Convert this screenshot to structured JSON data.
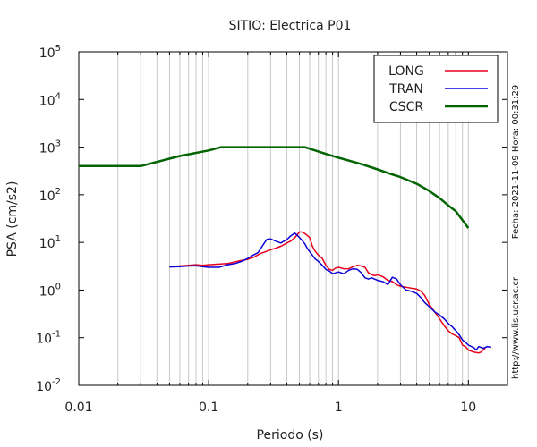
{
  "chart_data": {
    "type": "line",
    "title": "SITIO: Electrica P01",
    "xlabel": "Periodo (s)",
    "ylabel": "PSA (cm/s2)",
    "xscale": "log",
    "yscale": "log",
    "xlim": [
      0.01,
      20
    ],
    "ylim": [
      0.01,
      100000
    ],
    "grid_x": true,
    "grid_y": false,
    "legend_position": "top-right",
    "x_ticks": [
      {
        "value": 0.01,
        "label": "0.01"
      },
      {
        "value": 0.1,
        "label": "0.1"
      },
      {
        "value": 1,
        "label": "1"
      },
      {
        "value": 10,
        "label": "10"
      }
    ],
    "y_ticks": [
      {
        "value": 0.01,
        "base": "10",
        "exp": "-2"
      },
      {
        "value": 0.1,
        "base": "10",
        "exp": "-1"
      },
      {
        "value": 1,
        "base": "10",
        "exp": "0"
      },
      {
        "value": 10,
        "base": "10",
        "exp": "1"
      },
      {
        "value": 100,
        "base": "10",
        "exp": "2"
      },
      {
        "value": 1000,
        "base": "10",
        "exp": "3"
      },
      {
        "value": 10000,
        "base": "10",
        "exp": "4"
      },
      {
        "value": 100000,
        "base": "10",
        "exp": "5"
      }
    ],
    "series": [
      {
        "name": "LONG",
        "color": "#e8001c",
        "width": 1.5,
        "points": [
          [
            0.05,
            3.1
          ],
          [
            0.06,
            3.2
          ],
          [
            0.07,
            3.3
          ],
          [
            0.08,
            3.4
          ],
          [
            0.09,
            3.3
          ],
          [
            0.1,
            3.4
          ],
          [
            0.12,
            3.5
          ],
          [
            0.14,
            3.6
          ],
          [
            0.16,
            3.9
          ],
          [
            0.18,
            4.2
          ],
          [
            0.2,
            4.4
          ],
          [
            0.22,
            4.8
          ],
          [
            0.25,
            5.8
          ],
          [
            0.28,
            6.5
          ],
          [
            0.3,
            7.0
          ],
          [
            0.33,
            7.6
          ],
          [
            0.36,
            8.3
          ],
          [
            0.4,
            9.7
          ],
          [
            0.43,
            10.7
          ],
          [
            0.46,
            12.5
          ],
          [
            0.5,
            16.6
          ],
          [
            0.53,
            16.5
          ],
          [
            0.57,
            14.3
          ],
          [
            0.6,
            12.6
          ],
          [
            0.63,
            8.3
          ],
          [
            0.66,
            6.6
          ],
          [
            0.7,
            5.4
          ],
          [
            0.75,
            4.6
          ],
          [
            0.8,
            3.3
          ],
          [
            0.85,
            2.7
          ],
          [
            0.9,
            2.6
          ],
          [
            0.95,
            2.9
          ],
          [
            1.0,
            3.0
          ],
          [
            1.1,
            2.8
          ],
          [
            1.2,
            2.8
          ],
          [
            1.3,
            3.1
          ],
          [
            1.4,
            3.3
          ],
          [
            1.5,
            3.2
          ],
          [
            1.6,
            3.0
          ],
          [
            1.7,
            2.3
          ],
          [
            1.8,
            2.1
          ],
          [
            1.9,
            2.0
          ],
          [
            2.0,
            2.1
          ],
          [
            2.2,
            1.9
          ],
          [
            2.4,
            1.6
          ],
          [
            2.6,
            1.5
          ],
          [
            2.8,
            1.3
          ],
          [
            3.0,
            1.2
          ],
          [
            3.3,
            1.15
          ],
          [
            3.6,
            1.1
          ],
          [
            4.0,
            1.05
          ],
          [
            4.3,
            0.95
          ],
          [
            4.6,
            0.78
          ],
          [
            5.0,
            0.5
          ],
          [
            5.5,
            0.35
          ],
          [
            6.0,
            0.25
          ],
          [
            6.5,
            0.18
          ],
          [
            7.0,
            0.14
          ],
          [
            7.5,
            0.12
          ],
          [
            8.0,
            0.11
          ],
          [
            8.5,
            0.1
          ],
          [
            9.0,
            0.07
          ],
          [
            9.5,
            0.065
          ],
          [
            10,
            0.055
          ],
          [
            11,
            0.05
          ],
          [
            12,
            0.048
          ],
          [
            12.5,
            0.05
          ],
          [
            13,
            0.055
          ],
          [
            13.5,
            0.06
          ]
        ]
      },
      {
        "name": "TRAN",
        "color": "#0c00d6",
        "width": 1.5,
        "points": [
          [
            0.05,
            3.05
          ],
          [
            0.06,
            3.1
          ],
          [
            0.07,
            3.2
          ],
          [
            0.08,
            3.25
          ],
          [
            0.09,
            3.1
          ],
          [
            0.1,
            3.0
          ],
          [
            0.11,
            3.0
          ],
          [
            0.12,
            3.0
          ],
          [
            0.14,
            3.4
          ],
          [
            0.16,
            3.6
          ],
          [
            0.18,
            4.0
          ],
          [
            0.2,
            4.6
          ],
          [
            0.22,
            5.4
          ],
          [
            0.24,
            6.1
          ],
          [
            0.26,
            8.5
          ],
          [
            0.28,
            11.5
          ],
          [
            0.3,
            11.8
          ],
          [
            0.33,
            10.6
          ],
          [
            0.36,
            9.7
          ],
          [
            0.4,
            11.5
          ],
          [
            0.43,
            13.8
          ],
          [
            0.46,
            15.7
          ],
          [
            0.49,
            13.4
          ],
          [
            0.52,
            11.3
          ],
          [
            0.55,
            9.4
          ],
          [
            0.58,
            7.2
          ],
          [
            0.62,
            5.7
          ],
          [
            0.66,
            4.5
          ],
          [
            0.7,
            4.0
          ],
          [
            0.75,
            3.3
          ],
          [
            0.8,
            2.7
          ],
          [
            0.85,
            2.5
          ],
          [
            0.9,
            2.2
          ],
          [
            0.95,
            2.3
          ],
          [
            1.0,
            2.4
          ],
          [
            1.1,
            2.2
          ],
          [
            1.2,
            2.6
          ],
          [
            1.3,
            2.8
          ],
          [
            1.4,
            2.7
          ],
          [
            1.5,
            2.3
          ],
          [
            1.6,
            1.8
          ],
          [
            1.7,
            1.7
          ],
          [
            1.8,
            1.8
          ],
          [
            2.0,
            1.6
          ],
          [
            2.2,
            1.5
          ],
          [
            2.4,
            1.3
          ],
          [
            2.6,
            1.85
          ],
          [
            2.8,
            1.7
          ],
          [
            3.0,
            1.3
          ],
          [
            3.3,
            1.0
          ],
          [
            3.6,
            0.95
          ],
          [
            4.0,
            0.85
          ],
          [
            4.3,
            0.7
          ],
          [
            4.6,
            0.55
          ],
          [
            5.0,
            0.45
          ],
          [
            5.5,
            0.35
          ],
          [
            6.0,
            0.3
          ],
          [
            6.5,
            0.25
          ],
          [
            7.0,
            0.2
          ],
          [
            7.5,
            0.17
          ],
          [
            8.0,
            0.14
          ],
          [
            8.5,
            0.115
          ],
          [
            9.0,
            0.09
          ],
          [
            9.5,
            0.08
          ],
          [
            10,
            0.07
          ],
          [
            11,
            0.062
          ],
          [
            11.5,
            0.055
          ],
          [
            12,
            0.065
          ],
          [
            13,
            0.06
          ],
          [
            14,
            0.065
          ],
          [
            15,
            0.063
          ]
        ]
      },
      {
        "name": "CSCR",
        "color": "#006400",
        "width": 2.5,
        "points": [
          [
            0.01,
            400
          ],
          [
            0.03,
            400
          ],
          [
            0.06,
            650
          ],
          [
            0.1,
            850
          ],
          [
            0.125,
            1000
          ],
          [
            0.55,
            1000
          ],
          [
            0.8,
            720
          ],
          [
            1.0,
            600
          ],
          [
            1.5,
            440
          ],
          [
            2.0,
            340
          ],
          [
            2.5,
            275
          ],
          [
            3.0,
            235
          ],
          [
            4.0,
            170
          ],
          [
            5.0,
            120
          ],
          [
            6.0,
            85
          ],
          [
            7.0,
            60
          ],
          [
            8.0,
            45
          ],
          [
            10.0,
            20
          ]
        ]
      }
    ]
  },
  "side_text": {
    "date": "Fecha: 2021-11-09  Hora: 00:31:29",
    "url": "http://www.lis.ucr.ac.cr"
  }
}
